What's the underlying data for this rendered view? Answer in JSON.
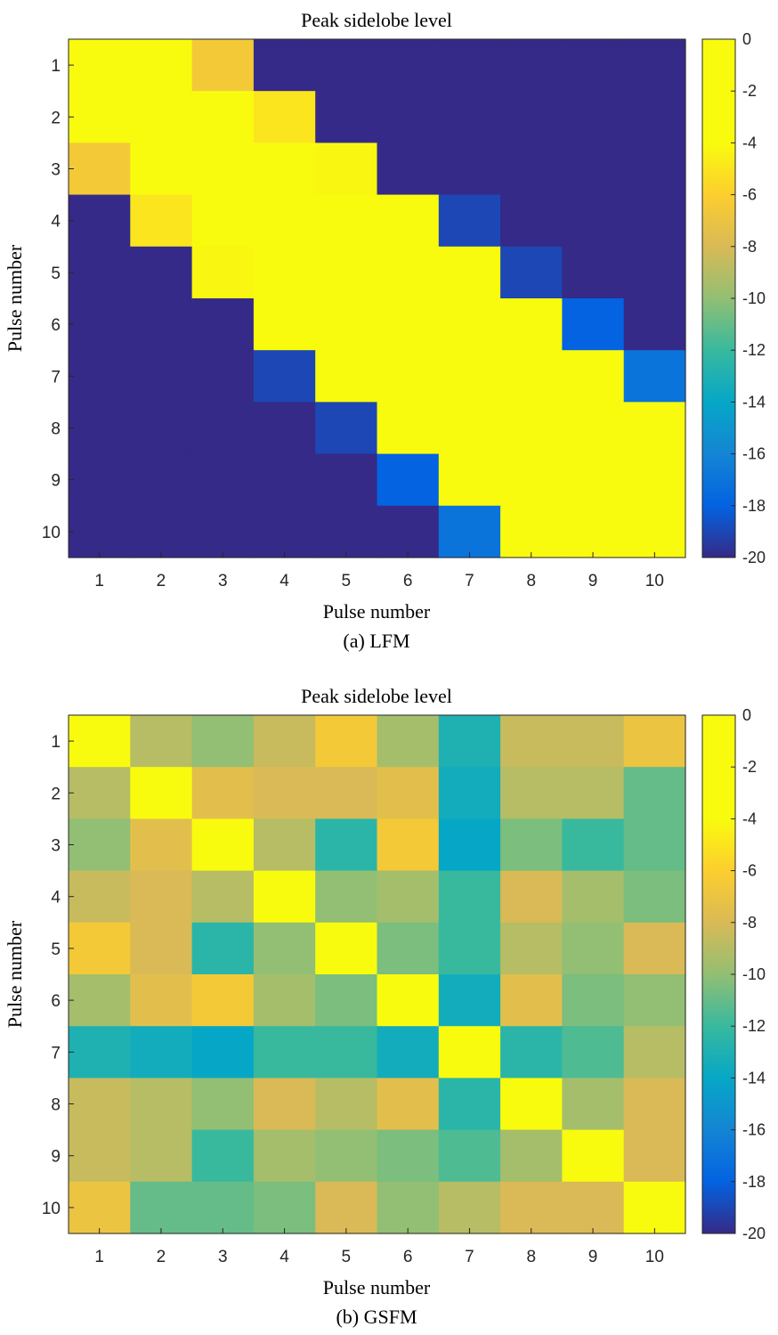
{
  "chart_data": [
    {
      "type": "heatmap",
      "title": "Peak sidelobe level",
      "xlabel": "Pulse number",
      "ylabel": "Pulse number",
      "caption": "(a) LFM",
      "x_ticks": [
        "1",
        "2",
        "3",
        "4",
        "5",
        "6",
        "7",
        "8",
        "9",
        "10"
      ],
      "y_ticks": [
        "1",
        "2",
        "3",
        "4",
        "5",
        "6",
        "7",
        "8",
        "9",
        "10"
      ],
      "clim": [
        -20,
        0
      ],
      "colorbar_ticks": [
        "0",
        "-2",
        "-4",
        "-6",
        "-8",
        "-10",
        "-12",
        "-14",
        "-16",
        "-18",
        "-20"
      ],
      "z": [
        [
          0,
          0,
          -6.5,
          -20,
          -20,
          -20,
          -20,
          -20,
          -20,
          -20
        ],
        [
          0,
          0,
          0,
          -5,
          -20,
          -20,
          -20,
          -20,
          -20,
          -20
        ],
        [
          -6.5,
          0,
          0,
          0,
          -4.2,
          -20,
          -20,
          -20,
          -20,
          -20
        ],
        [
          -20,
          -5,
          0,
          0,
          0,
          -3.5,
          -19,
          -20,
          -20,
          -20
        ],
        [
          -20,
          -20,
          -4.2,
          0,
          0,
          0,
          -2.7,
          -19,
          -20,
          -20
        ],
        [
          -20,
          -20,
          -20,
          -3.5,
          0,
          0,
          0,
          -2.2,
          -18,
          -20
        ],
        [
          -20,
          -20,
          -20,
          -19,
          -2.7,
          0,
          0,
          0,
          -1.5,
          -17
        ],
        [
          -20,
          -20,
          -20,
          -20,
          -19,
          -2.2,
          0,
          0,
          0,
          -1
        ],
        [
          -20,
          -20,
          -20,
          -20,
          -20,
          -18,
          -1.5,
          0,
          0,
          0
        ],
        [
          -20,
          -20,
          -20,
          -20,
          -20,
          -20,
          -17,
          -1,
          0,
          0
        ]
      ]
    },
    {
      "type": "heatmap",
      "title": "Peak sidelobe level",
      "xlabel": "Pulse number",
      "ylabel": "Pulse number",
      "caption": "(b) GSFM",
      "x_ticks": [
        "1",
        "2",
        "3",
        "4",
        "5",
        "6",
        "7",
        "8",
        "9",
        "10"
      ],
      "y_ticks": [
        "1",
        "2",
        "3",
        "4",
        "5",
        "6",
        "7",
        "8",
        "9",
        "10"
      ],
      "clim": [
        -20,
        0
      ],
      "colorbar_ticks": [
        "0",
        "-2",
        "-4",
        "-6",
        "-8",
        "-10",
        "-12",
        "-14",
        "-16",
        "-18",
        "-20"
      ],
      "z": [
        [
          0,
          -9,
          -10,
          -8.5,
          -6.5,
          -9.5,
          -13,
          -8.5,
          -8.5,
          -7
        ],
        [
          -9,
          0,
          -7.5,
          -8,
          -8,
          -7.5,
          -13.5,
          -9,
          -9,
          -11
        ],
        [
          -10,
          -7.5,
          0,
          -9,
          -12.5,
          -6.5,
          -14,
          -10.5,
          -12,
          -11
        ],
        [
          -8.5,
          -8,
          -9,
          0,
          -10,
          -9.5,
          -12,
          -8,
          -9.5,
          -10.5
        ],
        [
          -6.5,
          -8,
          -12.5,
          -10,
          0,
          -10.5,
          -12,
          -9,
          -10,
          -8
        ],
        [
          -9.5,
          -7.5,
          -6.5,
          -9.5,
          -10.5,
          0,
          -13.5,
          -7.5,
          -10.5,
          -10
        ],
        [
          -13,
          -13.5,
          -14,
          -12,
          -12,
          -13.5,
          0,
          -12.5,
          -11.5,
          -9
        ],
        [
          -8.5,
          -9,
          -10,
          -8,
          -9,
          -7.5,
          -12.5,
          0,
          -9.5,
          -8
        ],
        [
          -8.5,
          -9,
          -12,
          -9.5,
          -10,
          -10.5,
          -11.5,
          -9.5,
          0,
          -8
        ],
        [
          -7,
          -11,
          -11,
          -10.5,
          -8,
          -10,
          -9,
          -8,
          -8,
          0
        ]
      ]
    }
  ]
}
